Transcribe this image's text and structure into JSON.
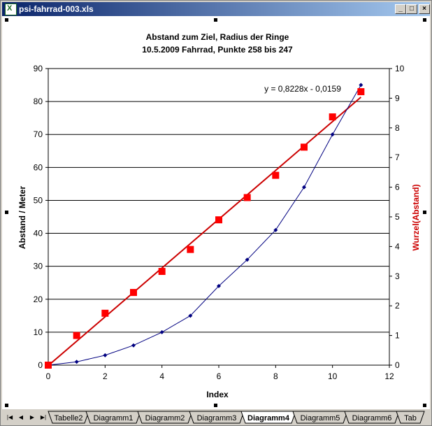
{
  "window": {
    "title": "psi-fahrrad-003.xls",
    "min": "_",
    "max": "□",
    "close": "×"
  },
  "tabs": {
    "items": [
      "Tabelle2",
      "Diagramm1",
      "Diagramm2",
      "Diagramm3",
      "Diagramm4",
      "Diagramm5",
      "Diagramm6",
      "Tab"
    ],
    "active": 4
  },
  "chart_data": {
    "type": "line",
    "title": "Abstand zum Ziel, Radius der Ringe",
    "subtitle": "10.5.2009 Fahrrad, Punkte 258 bis 247",
    "xlabel": "Index",
    "ylabel": "Abstand / Meter",
    "y2label": "Wurzel(Abstand)",
    "xlim": [
      0,
      12
    ],
    "ylim": [
      0,
      90
    ],
    "y2lim": [
      0,
      10
    ],
    "xticks": [
      "0",
      "2",
      "4",
      "6",
      "8",
      "10",
      "12"
    ],
    "yticks": [
      "0",
      "10",
      "20",
      "30",
      "40",
      "50",
      "60",
      "70",
      "80",
      "90"
    ],
    "y2ticks": [
      "0",
      "1",
      "2",
      "3",
      "4",
      "5",
      "6",
      "7",
      "8",
      "9",
      "10"
    ],
    "grid": "horizontal",
    "trendline_label": "y = 0,8228x - 0,0159",
    "trendline": {
      "slope": 0.8228,
      "intercept": -0.0159,
      "axis": "secondary",
      "color": "#cc0000"
    },
    "series": [
      {
        "axis": "primary",
        "color": "#000080",
        "marker": "diamond",
        "x": [
          0,
          1,
          2,
          3,
          4,
          5,
          6,
          7,
          8,
          9,
          10,
          11
        ],
        "y": [
          0,
          1,
          3,
          6,
          10,
          15,
          24,
          32,
          41,
          54,
          70,
          85
        ]
      },
      {
        "axis": "secondary",
        "color": "#ff0000",
        "marker": "square",
        "x": [
          0,
          1,
          2,
          3,
          4,
          5,
          6,
          7,
          8,
          9,
          10,
          11
        ],
        "y": [
          0,
          1.0,
          1.75,
          2.45,
          3.16,
          3.9,
          4.9,
          5.65,
          6.4,
          7.35,
          8.37,
          9.22
        ]
      }
    ]
  }
}
